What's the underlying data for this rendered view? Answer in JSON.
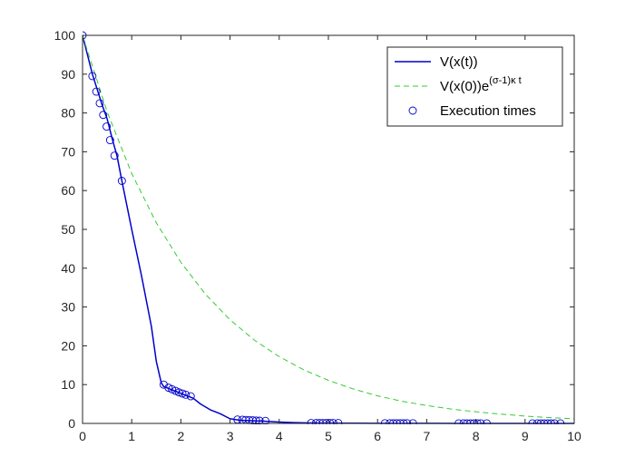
{
  "chart_data": {
    "type": "line",
    "title": "",
    "xlabel": "",
    "ylabel": "",
    "xlim": [
      0,
      10
    ],
    "ylim": [
      0,
      100
    ],
    "xticks": [
      "0",
      "1",
      "2",
      "3",
      "4",
      "5",
      "6",
      "7",
      "8",
      "9",
      "10"
    ],
    "yticks": [
      "0",
      "10",
      "20",
      "30",
      "40",
      "50",
      "60",
      "70",
      "80",
      "90",
      "100"
    ],
    "grid": false,
    "legend_position": "top-right",
    "series": [
      {
        "name": "V(x(t))",
        "style": "solid",
        "color": "#0000cc",
        "x": [
          0,
          0.2,
          0.3,
          0.4,
          0.5,
          0.6,
          0.7,
          0.8,
          1.0,
          1.2,
          1.4,
          1.5,
          1.6,
          1.65,
          1.75,
          1.85,
          1.95,
          2.05,
          2.15,
          2.25,
          2.4,
          2.6,
          2.8,
          3.0,
          3.15,
          3.25,
          3.35,
          3.45,
          3.55,
          3.65,
          3.8,
          4.0,
          4.3,
          4.65,
          5.0,
          5.2,
          5.5,
          6.0,
          6.2,
          6.7,
          7.0,
          7.7,
          8.2,
          8.6,
          9.2,
          9.8,
          10
        ],
        "y": [
          100,
          90,
          86,
          82,
          78.5,
          73.5,
          69,
          62.5,
          50,
          38,
          25,
          16,
          10.5,
          9.5,
          9,
          8.5,
          8,
          7.5,
          7,
          6.5,
          5,
          3.5,
          2.5,
          1.2,
          0.9,
          0.8,
          0.75,
          0.7,
          0.65,
          0.6,
          0.5,
          0.35,
          0.2,
          0.12,
          0.08,
          0.06,
          0.05,
          0.04,
          0.03,
          0.02,
          0.02,
          0.01,
          0.01,
          0.01,
          0.01,
          0.01,
          0.01
        ]
      },
      {
        "name": "V(x(0))e",
        "name_superscript": "(σ-1)κ t",
        "style": "dashed",
        "color": "#33cc33",
        "decay_rate": 0.44,
        "x": [
          0,
          0.5,
          1,
          1.5,
          2,
          2.5,
          3,
          3.5,
          4,
          4.5,
          5,
          5.5,
          6,
          6.5,
          7,
          7.5,
          8,
          8.5,
          9,
          9.5,
          10
        ],
        "y": [
          100,
          80.3,
          64.4,
          51.7,
          41.5,
          33.3,
          26.7,
          21.4,
          17.2,
          13.8,
          11.1,
          8.9,
          7.1,
          5.7,
          4.6,
          3.7,
          3.0,
          2.4,
          1.9,
          1.5,
          1.2
        ]
      },
      {
        "name": "Execution times",
        "style": "markers",
        "marker": "circle",
        "color": "#0000cc",
        "x": [
          0,
          0.2,
          0.28,
          0.35,
          0.42,
          0.49,
          0.56,
          0.65,
          0.8,
          1.65,
          1.75,
          1.82,
          1.89,
          1.96,
          2.03,
          2.1,
          2.2,
          3.15,
          3.25,
          3.32,
          3.39,
          3.46,
          3.53,
          3.6,
          3.72,
          4.65,
          4.75,
          4.82,
          4.89,
          4.96,
          5.03,
          5.1,
          5.2,
          6.15,
          6.25,
          6.32,
          6.39,
          6.46,
          6.53,
          6.6,
          6.72,
          7.65,
          7.75,
          7.82,
          7.89,
          7.96,
          8.03,
          8.1,
          8.22,
          9.15,
          9.25,
          9.32,
          9.39,
          9.46,
          9.53,
          9.6,
          9.72
        ],
        "y": [
          100,
          89.5,
          85.5,
          82.5,
          79.5,
          76.5,
          73,
          69,
          62.5,
          10,
          9.2,
          8.8,
          8.4,
          8,
          7.7,
          7.4,
          7,
          1,
          0.95,
          0.9,
          0.85,
          0.8,
          0.75,
          0.7,
          0.65,
          0.1,
          0.1,
          0.1,
          0.1,
          0.1,
          0.1,
          0.1,
          0.1,
          0.05,
          0.05,
          0.05,
          0.05,
          0.05,
          0.05,
          0.05,
          0.05,
          0.02,
          0.02,
          0.02,
          0.02,
          0.02,
          0.02,
          0.02,
          0.02,
          0.01,
          0.01,
          0.01,
          0.01,
          0.01,
          0.01,
          0.01,
          0.01
        ]
      }
    ]
  }
}
